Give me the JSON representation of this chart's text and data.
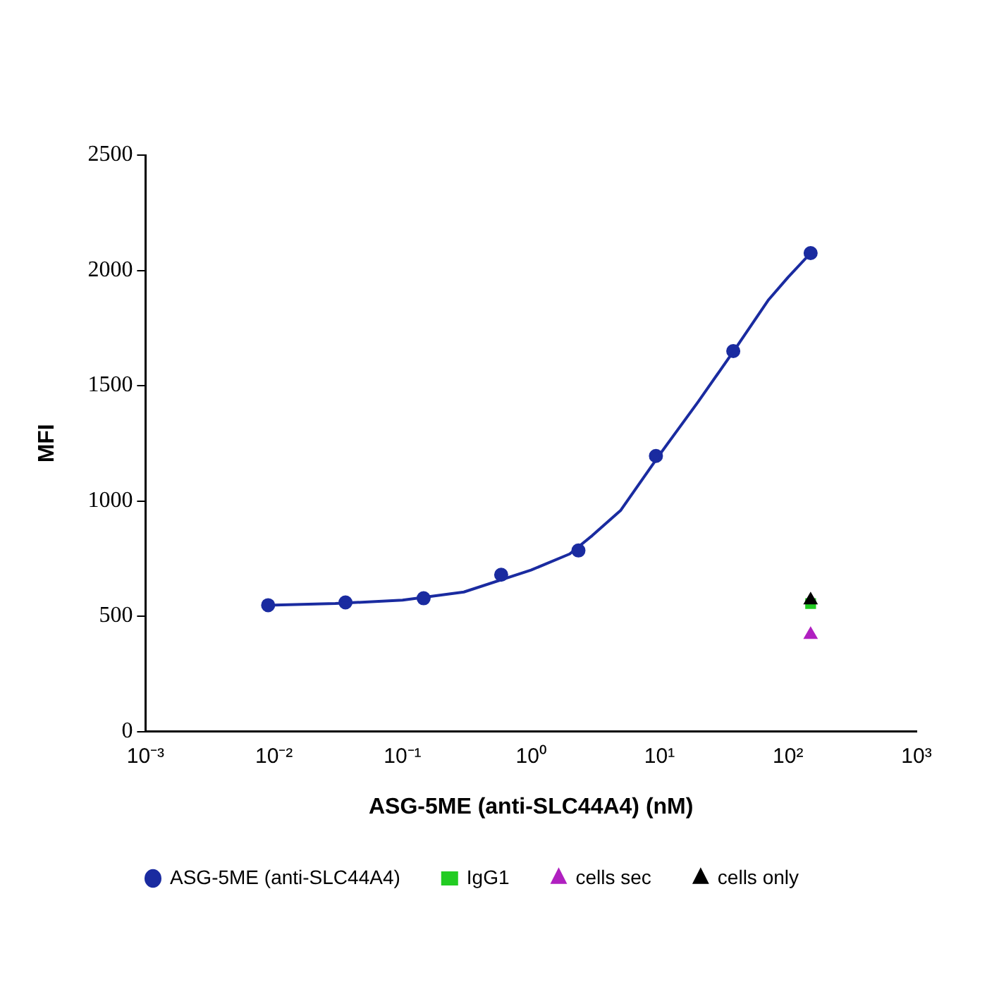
{
  "chart_data": {
    "type": "scatter",
    "xlabel": "ASG-5ME (anti-SLC44A4) (nM)",
    "ylabel": "MFI",
    "log": "x",
    "xlim": [
      0.001,
      1000
    ],
    "xticks": [
      {
        "value": 0.001,
        "label": "10⁻³"
      },
      {
        "value": 0.01,
        "label": "10⁻²"
      },
      {
        "value": 0.1,
        "label": "10⁻¹"
      },
      {
        "value": 1,
        "label": "10⁰"
      },
      {
        "value": 10,
        "label": "10¹"
      },
      {
        "value": 100,
        "label": "10²"
      },
      {
        "value": 1000,
        "label": "10³"
      }
    ],
    "ylim": [
      0,
      2500
    ],
    "yticks": [
      0,
      500,
      1000,
      1500,
      2000,
      2500
    ],
    "grid": false,
    "legend": "bottom",
    "series": [
      {
        "name": "ASG-5ME (anti-SLC44A4)",
        "marker": "circle",
        "color": "#1a2ba0",
        "x": [
          0.009,
          0.036,
          0.146,
          0.586,
          2.34,
          9.38,
          37.5,
          150
        ],
        "values": [
          548,
          560,
          578,
          680,
          785,
          1195,
          1650,
          2075
        ]
      },
      {
        "type": "line",
        "marker": "none",
        "color": "#1a2ba0",
        "x": [
          0.009,
          0.03,
          0.1,
          0.3,
          1,
          2,
          3,
          5,
          10,
          20,
          40,
          70,
          100,
          150
        ],
        "values": [
          548,
          555,
          570,
          605,
          700,
          770,
          850,
          960,
          1200,
          1430,
          1670,
          1870,
          1970,
          2075
        ]
      },
      {
        "name": "IgG1",
        "marker": "square",
        "color": "#22cc22",
        "x": [
          150
        ],
        "values": [
          555
        ]
      },
      {
        "name": "cells sec",
        "marker": "triangle",
        "color": "#b020c0",
        "x": [
          150
        ],
        "values": [
          420
        ]
      },
      {
        "name": "cells only",
        "marker": "triangle",
        "color": "#000000",
        "x": [
          150
        ],
        "values": [
          570
        ]
      }
    ]
  }
}
